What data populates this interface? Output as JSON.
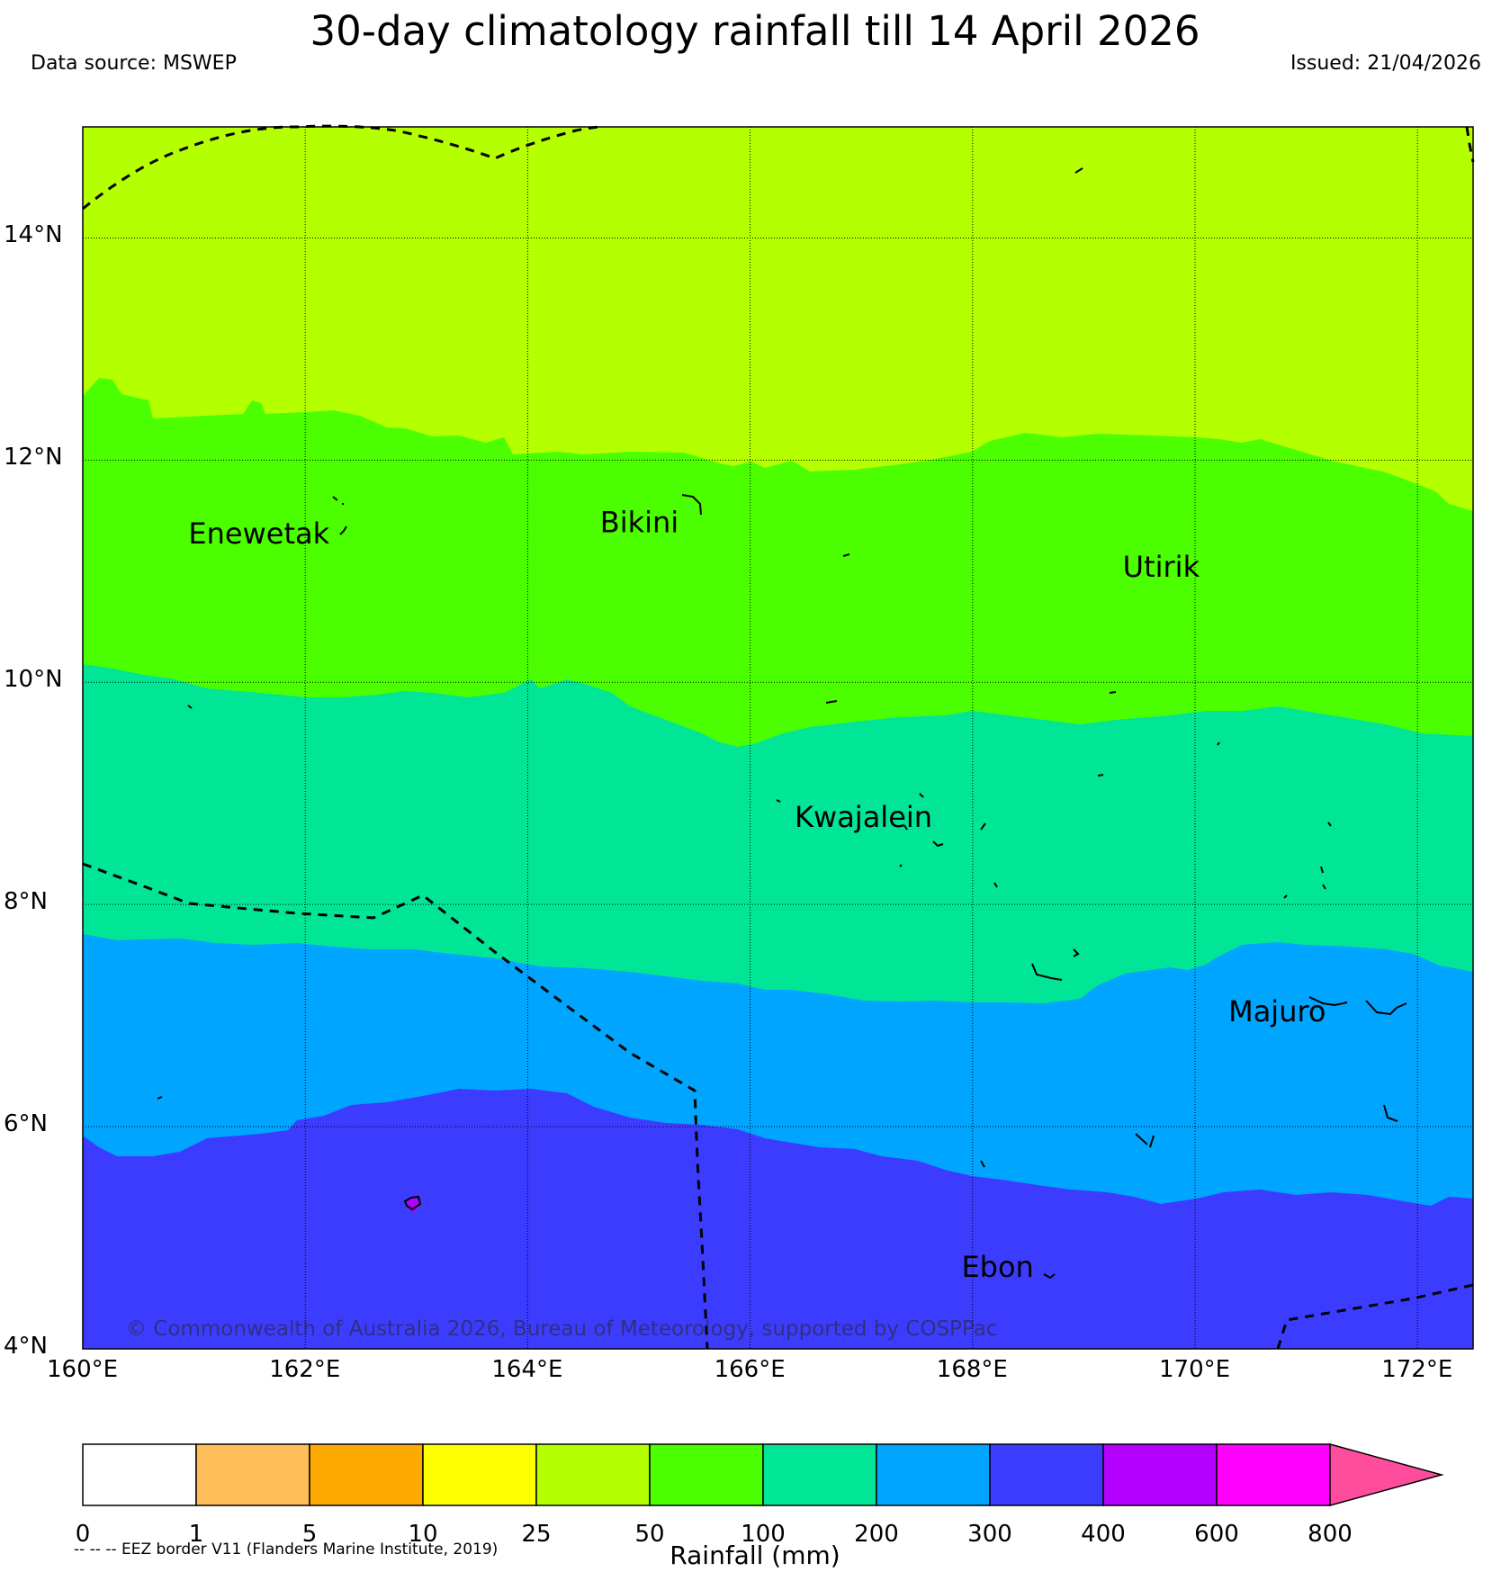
{
  "header": {
    "title": "30-day climatology rainfall till 14 April 2026",
    "data_source": "Data source: MSWEP",
    "issued": "Issued: 21/04/2026"
  },
  "axes": {
    "x_ticks": [
      "160°E",
      "162°E",
      "164°E",
      "166°E",
      "168°E",
      "170°E",
      "172°E"
    ],
    "y_ticks": [
      "14°N",
      "12°N",
      "10°N",
      "8°N",
      "6°N",
      "4°N"
    ],
    "lon_range": [
      160,
      172.5
    ],
    "lat_range": [
      4,
      15
    ]
  },
  "places": [
    {
      "name": "Enewetak",
      "lon": 160.95,
      "lat": 11.25
    },
    {
      "name": "Bikini",
      "lon": 164.65,
      "lat": 11.35
    },
    {
      "name": "Utirik",
      "lon": 169.35,
      "lat": 10.95
    },
    {
      "name": "Kwajalein",
      "lon": 166.4,
      "lat": 8.7
    },
    {
      "name": "Majuro",
      "lon": 170.3,
      "lat": 6.95
    },
    {
      "name": "Ebon",
      "lon": 167.9,
      "lat": 4.65
    }
  ],
  "copyright": "© Commonwealth of Australia 2026, Bureau of Meteorology, supported by COSPPac",
  "colorbar": {
    "title": "Rainfall (mm)",
    "ticks": [
      "0",
      "1",
      "5",
      "10",
      "25",
      "50",
      "100",
      "200",
      "300",
      "400",
      "600",
      "800"
    ],
    "colors": [
      "#ffffff",
      "#ffbe5a",
      "#ffaa00",
      "#ffff00",
      "#b4ff00",
      "#4bff00",
      "#00e696",
      "#00a5ff",
      "#3c3cff",
      "#b400ff",
      "#ff00ff"
    ],
    "extend_color": "#ff4d9e"
  },
  "eez_note": "-- -- -- EEZ border V11 (Flanders Marine Institute, 2019)",
  "chart_data": {
    "type": "filled-contour-map",
    "variable": "Rainfall (mm)",
    "period": "30-day climatology till 14 April 2026",
    "bands": [
      {
        "range": "25-50 mm",
        "color": "#b4ff00",
        "region": "north of about 11.8-12.6°N"
      },
      {
        "range": "50-100 mm",
        "color": "#4bff00",
        "region": "about 9.4-12.6°N"
      },
      {
        "range": "100-200 mm",
        "color": "#00e696",
        "region": "about 7-10.2°N"
      },
      {
        "range": "200-300 mm",
        "color": "#00a5ff",
        "region": "about 5.3-7.7°N"
      },
      {
        "range": "300-400 mm",
        "color": "#3c3cff",
        "region": "south of about 5.3-6.3°N"
      },
      {
        "range": "400-600 mm",
        "color": "#b400ff",
        "region": "small patch near 163°E, 5.3°N"
      }
    ]
  }
}
